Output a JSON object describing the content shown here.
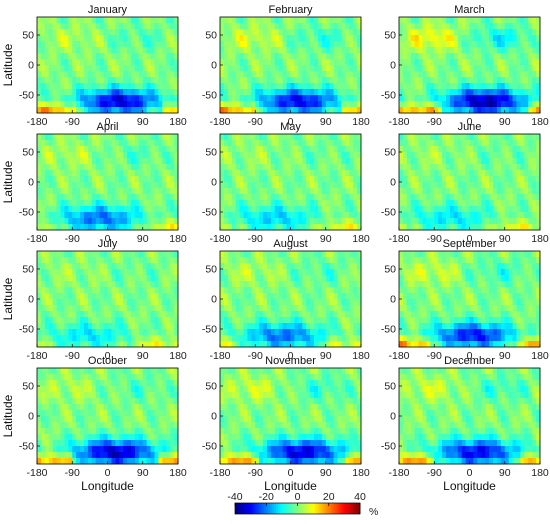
{
  "chart_data": {
    "type": "heatmap",
    "layout": {
      "rows": 4,
      "cols": 3
    },
    "xlabel": "Longitude",
    "ylabel": "Latitude",
    "xlim": [
      -180,
      180
    ],
    "ylim": [
      -80,
      80
    ],
    "xticks": [
      -180,
      -90,
      0,
      90,
      180
    ],
    "yticks": [
      -50,
      0,
      50
    ],
    "xtick_labels": [
      "-180",
      "-90",
      "0",
      "90",
      "180"
    ],
    "ytick_labels": [
      "-50",
      "0",
      "50"
    ],
    "panels": [
      {
        "title": "January"
      },
      {
        "title": "February"
      },
      {
        "title": "March"
      },
      {
        "title": "April"
      },
      {
        "title": "May"
      },
      {
        "title": "June"
      },
      {
        "title": "July"
      },
      {
        "title": "August"
      },
      {
        "title": "September"
      },
      {
        "title": "October"
      },
      {
        "title": "November"
      },
      {
        "title": "December"
      }
    ],
    "colorbar": {
      "ticks": [
        -40,
        -20,
        0,
        20,
        40
      ],
      "tick_labels": [
        "-40",
        "-20",
        "0",
        "20",
        "40"
      ],
      "unit": "%",
      "range": [
        -40,
        40
      ],
      "colormap": "jet"
    }
  }
}
